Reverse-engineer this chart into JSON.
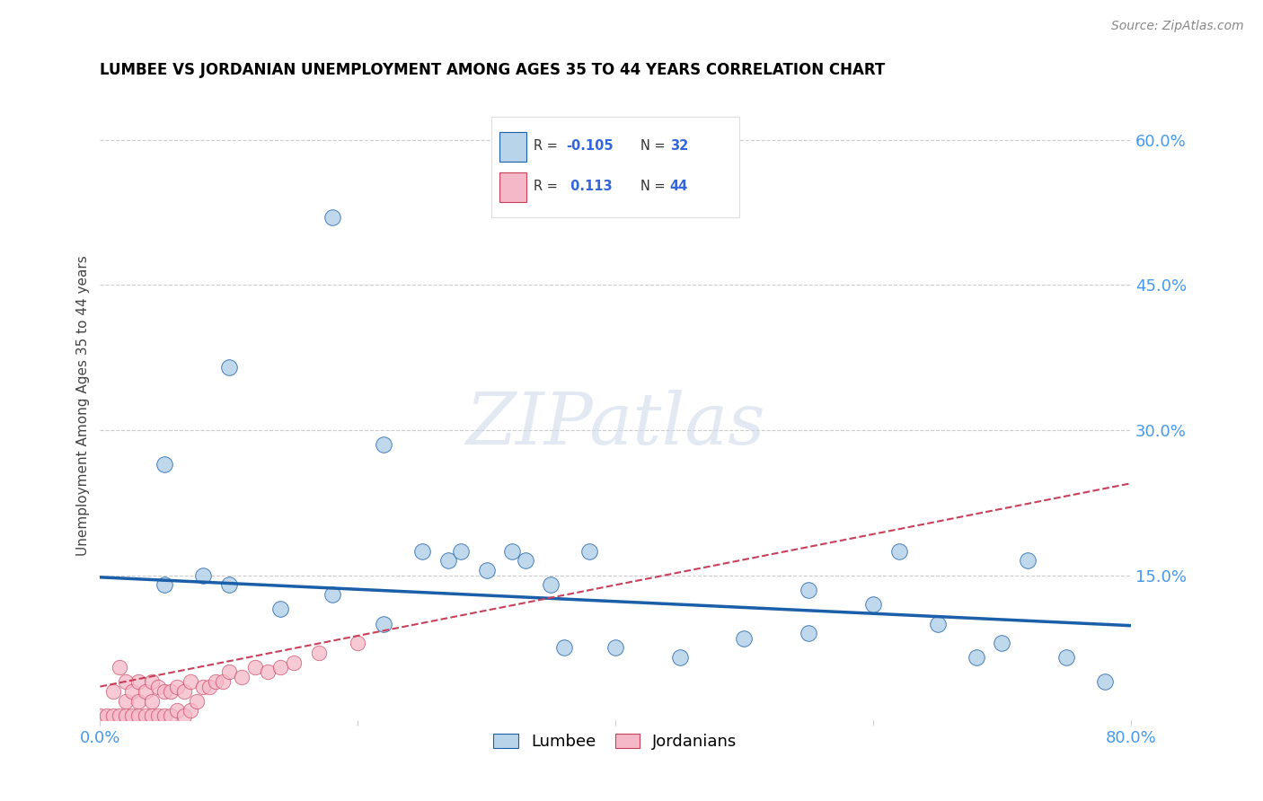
{
  "title": "LUMBEE VS JORDANIAN UNEMPLOYMENT AMONG AGES 35 TO 44 YEARS CORRELATION CHART",
  "source": "Source: ZipAtlas.com",
  "ylabel": "Unemployment Among Ages 35 to 44 years",
  "xlim": [
    0.0,
    0.8
  ],
  "ylim": [
    0.0,
    0.65
  ],
  "xticks": [
    0.0,
    0.2,
    0.4,
    0.6,
    0.8
  ],
  "xticklabels": [
    "0.0%",
    "",
    "",
    "",
    "80.0%"
  ],
  "yticks": [
    0.0,
    0.15,
    0.3,
    0.45,
    0.6
  ],
  "yticklabels": [
    "",
    "15.0%",
    "30.0%",
    "45.0%",
    "60.0%"
  ],
  "lumbee_R": -0.105,
  "lumbee_N": 32,
  "jordanian_R": 0.113,
  "jordanian_N": 44,
  "lumbee_color": "#b8d4ea",
  "lumbee_line_color": "#1a5fa8",
  "jordanian_color": "#f5b8c8",
  "jordanian_line_color": "#c8405a",
  "watermark_text": "ZIPatlas",
  "background_color": "#ffffff",
  "lumbee_x": [
    0.05,
    0.1,
    0.18,
    0.22,
    0.25,
    0.27,
    0.28,
    0.3,
    0.32,
    0.33,
    0.35,
    0.36,
    0.38,
    0.4,
    0.45,
    0.5,
    0.55,
    0.6,
    0.62,
    0.65,
    0.68,
    0.7,
    0.72,
    0.75,
    0.78,
    0.05,
    0.08,
    0.1,
    0.14,
    0.18,
    0.22,
    0.55
  ],
  "lumbee_y": [
    0.265,
    0.365,
    0.52,
    0.285,
    0.175,
    0.165,
    0.175,
    0.155,
    0.175,
    0.165,
    0.14,
    0.075,
    0.175,
    0.075,
    0.065,
    0.085,
    0.135,
    0.12,
    0.175,
    0.1,
    0.065,
    0.08,
    0.165,
    0.065,
    0.04,
    0.14,
    0.15,
    0.14,
    0.115,
    0.13,
    0.1,
    0.09
  ],
  "jordanian_x": [
    0.0,
    0.005,
    0.01,
    0.01,
    0.015,
    0.015,
    0.02,
    0.02,
    0.02,
    0.025,
    0.025,
    0.03,
    0.03,
    0.03,
    0.035,
    0.035,
    0.04,
    0.04,
    0.04,
    0.045,
    0.045,
    0.05,
    0.05,
    0.055,
    0.055,
    0.06,
    0.06,
    0.065,
    0.065,
    0.07,
    0.07,
    0.075,
    0.08,
    0.085,
    0.09,
    0.095,
    0.1,
    0.11,
    0.12,
    0.13,
    0.14,
    0.15,
    0.17,
    0.2
  ],
  "jordanian_y": [
    0.005,
    0.005,
    0.005,
    0.03,
    0.005,
    0.055,
    0.005,
    0.02,
    0.04,
    0.005,
    0.03,
    0.005,
    0.02,
    0.04,
    0.005,
    0.03,
    0.005,
    0.02,
    0.04,
    0.005,
    0.035,
    0.005,
    0.03,
    0.005,
    0.03,
    0.01,
    0.035,
    0.005,
    0.03,
    0.01,
    0.04,
    0.02,
    0.035,
    0.035,
    0.04,
    0.04,
    0.05,
    0.045,
    0.055,
    0.05,
    0.055,
    0.06,
    0.07,
    0.08
  ],
  "lumbee_line_x": [
    0.0,
    0.8
  ],
  "lumbee_line_y": [
    0.148,
    0.098
  ],
  "jordan_line_x": [
    0.0,
    0.8
  ],
  "jordan_line_y": [
    0.035,
    0.245
  ]
}
